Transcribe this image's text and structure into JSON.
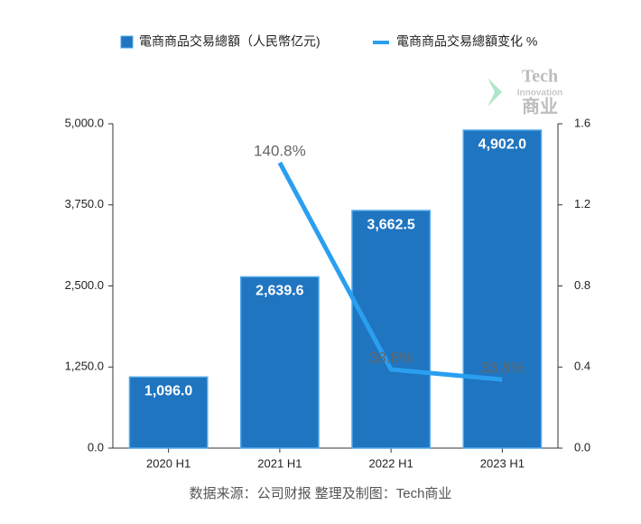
{
  "chart_data": {
    "type": "bar-line",
    "categories": [
      "2020 H1",
      "2021 H1",
      "2022 H1",
      "2023 H1"
    ],
    "series": [
      {
        "name": "電商商品交易總額（人民幣亿元)",
        "type": "bar",
        "color": "#1f75c0",
        "values": [
          1096.0,
          2639.6,
          3662.5,
          4902.0
        ],
        "value_labels": [
          "1,096.0",
          "2,639.6",
          "3,662.5",
          "4,902.0"
        ]
      },
      {
        "name": "電商商品交易總額变化 %",
        "type": "line",
        "axis": "y2",
        "color": "#2a9ff0",
        "values": [
          null,
          1.408,
          0.388,
          0.338
        ],
        "value_labels": [
          null,
          "140.8%",
          "38.8%",
          "33.8%"
        ]
      }
    ],
    "ylim": [
      0,
      5000
    ],
    "yticks": [
      {
        "value": 0,
        "label": "0.0"
      },
      {
        "value": 1250,
        "label": "1,250.0"
      },
      {
        "value": 2500,
        "label": "2,500.0"
      },
      {
        "value": 3750,
        "label": "3,750.0"
      },
      {
        "value": 5000,
        "label": "5,000.0"
      }
    ],
    "y2lim": [
      0,
      1.6
    ],
    "y2ticks": [
      {
        "value": 0,
        "label": "0.0"
      },
      0.4,
      0.8,
      1.2,
      1.6
    ],
    "grid": false,
    "source": "数据来源：公司财报 整理及制图：Tech商业",
    "watermark": [
      "Tech",
      "Innovation",
      "商业"
    ]
  }
}
